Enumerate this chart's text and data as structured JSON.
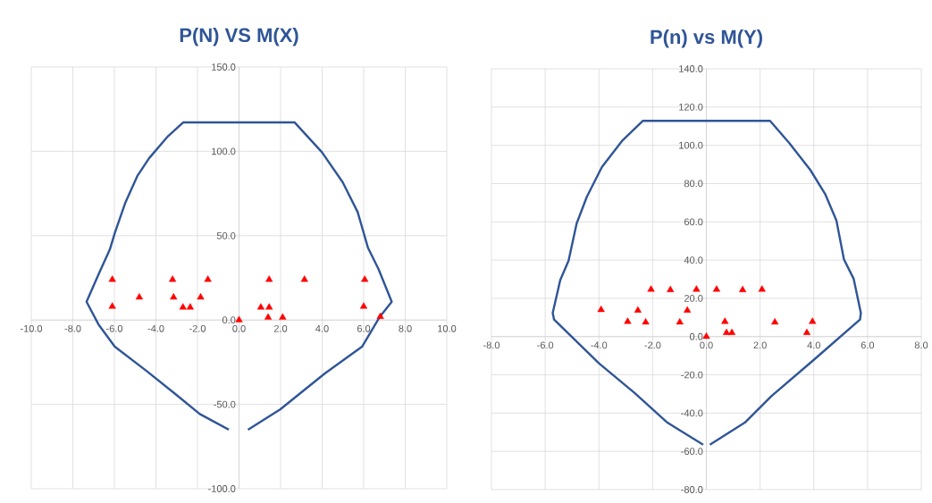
{
  "chart_data": [
    {
      "type": "scatter",
      "title": "P(N) VS M(X)",
      "grid": true,
      "xlim": [
        -10,
        10
      ],
      "ylim": [
        -100,
        150
      ],
      "xticks": [
        {
          "value": -10,
          "label": "-10.0"
        },
        {
          "value": -8,
          "label": "-8.0"
        },
        {
          "value": -6,
          "label": "-6.0"
        },
        {
          "value": -4,
          "label": "-4.0"
        },
        {
          "value": -2,
          "label": "-2.0"
        },
        {
          "value": 0,
          "label": "0.0"
        },
        {
          "value": 2,
          "label": "2.0"
        },
        {
          "value": 4,
          "label": "4.0"
        },
        {
          "value": 6,
          "label": "6.0"
        },
        {
          "value": 8,
          "label": "8.0"
        },
        {
          "value": 10,
          "label": "10.0"
        }
      ],
      "yticks": [
        {
          "value": -100,
          "label": "-100.0"
        },
        {
          "value": -50,
          "label": "-50.0"
        },
        {
          "value": 0,
          "label": "0.0"
        },
        {
          "value": 50,
          "label": "50.0"
        },
        {
          "value": 100,
          "label": "100.0"
        },
        {
          "value": 150,
          "label": "150.0"
        }
      ],
      "series": [
        {
          "type": "line",
          "color": "#2f5597",
          "marker": "none",
          "x": [
            -0.49,
            -1.89,
            -3.04,
            -4.47,
            -5.98,
            -6.77,
            -7.34,
            -6.77,
            -6.22,
            -5.98,
            -5.48,
            -4.9,
            -4.33,
            -3.47,
            -2.68,
            2.67,
            3.99,
            4.99,
            5.71,
            6.21,
            6.71,
            7.35,
            6.78,
            5.92,
            4.13,
            1.98,
            0.43
          ],
          "values": [
            -65,
            -55.7,
            -44.1,
            -30,
            -15.8,
            -2.5,
            10.8,
            26.8,
            41.8,
            51.6,
            69.3,
            85.3,
            95.9,
            108.3,
            117.2,
            117.2,
            99.5,
            81.7,
            64,
            42.7,
            30.3,
            10.8,
            2,
            -15.8,
            -31.7,
            -53,
            -65
          ]
        },
        {
          "type": "scatter",
          "color": "#ff0000",
          "marker": "triangle",
          "x": [
            -6.1,
            -6.1,
            -4.8,
            -3.2,
            -3.15,
            -2.7,
            -2.35,
            -1.85,
            -1.5,
            0,
            1.05,
            1.45,
            1.45,
            1.4,
            2.1,
            3.15,
            6.05,
            6.0,
            6.8
          ],
          "values": [
            24,
            8,
            13.5,
            24,
            13.5,
            7.5,
            7.5,
            13.5,
            24,
            0,
            7.5,
            7.5,
            24,
            1.5,
            1.5,
            24,
            24,
            8,
            2
          ]
        }
      ]
    },
    {
      "type": "scatter",
      "title": "P(n) vs M(Y)",
      "grid": true,
      "xlim": [
        -8,
        8
      ],
      "ylim": [
        -80,
        140
      ],
      "xticks": [
        {
          "value": -8,
          "label": "-8.0"
        },
        {
          "value": -6,
          "label": "-6.0"
        },
        {
          "value": -4,
          "label": "-4.0"
        },
        {
          "value": -2,
          "label": "-2.0"
        },
        {
          "value": 0,
          "label": "0.0"
        },
        {
          "value": 2,
          "label": "2.0"
        },
        {
          "value": 4,
          "label": "4.0"
        },
        {
          "value": 6,
          "label": "6.0"
        },
        {
          "value": 8,
          "label": "8.0"
        }
      ],
      "yticks": [
        {
          "value": -80,
          "label": "-80.0"
        },
        {
          "value": -60,
          "label": "-60.0"
        },
        {
          "value": -40,
          "label": "-40.0"
        },
        {
          "value": -20,
          "label": "-20.0"
        },
        {
          "value": 0,
          "label": "0.0"
        },
        {
          "value": 20,
          "label": "20.0"
        },
        {
          "value": 40,
          "label": "40.0"
        },
        {
          "value": 60,
          "label": "60.0"
        },
        {
          "value": 80,
          "label": "80.0"
        },
        {
          "value": 100,
          "label": "100.0"
        },
        {
          "value": 120,
          "label": "120.0"
        },
        {
          "value": 140,
          "label": "140.0"
        }
      ],
      "series": [
        {
          "type": "line",
          "color": "#2f5597",
          "marker": "none",
          "x": [
            -0.12,
            -1.45,
            -2.67,
            -4.0,
            -5.67,
            -5.72,
            -5.44,
            -5.13,
            -4.83,
            -4.45,
            -3.89,
            -3.12,
            -2.36,
            2.37,
            3.09,
            3.87,
            4.42,
            4.84,
            5.12,
            5.48,
            5.75,
            5.72,
            3.98,
            2.43,
            1.43,
            0.13
          ],
          "values": [
            -56.5,
            -45,
            -29.5,
            -14,
            8.9,
            12.4,
            29.5,
            39.7,
            59.1,
            73.1,
            88.6,
            102.6,
            112.8,
            112.8,
            101.1,
            87.1,
            74.6,
            60.7,
            40.4,
            30.3,
            12.4,
            8.9,
            -12.4,
            -31,
            -45,
            -56.5
          ]
        },
        {
          "type": "scatter",
          "color": "#ff0000",
          "marker": "triangle",
          "x": [
            -3.92,
            -2.93,
            -2.55,
            -2.26,
            -2.06,
            -1.34,
            -0.99,
            -0.71,
            -0.37,
            0,
            0.38,
            0.69,
            0.75,
            0.95,
            1.35,
            2.07,
            2.55,
            3.74,
            3.95
          ],
          "values": [
            14,
            7.8,
            13.7,
            7.5,
            24.6,
            24.4,
            7.5,
            13.7,
            24.6,
            0,
            24.6,
            7.8,
            2,
            2,
            24.4,
            24.6,
            7.5,
            2,
            7.8
          ]
        }
      ]
    }
  ]
}
